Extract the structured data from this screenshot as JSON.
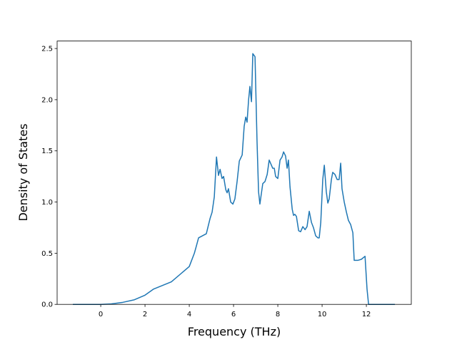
{
  "chart_data": {
    "type": "line",
    "xlabel": "Frequency (THz)",
    "ylabel": "Density of States",
    "x": [
      -1.26,
      0,
      0.48,
      1,
      1.52,
      2,
      2.39,
      3.19,
      4,
      4.23,
      4.32,
      4.42,
      4.77,
      4.94,
      5.03,
      5.13,
      5.23,
      5.32,
      5.39,
      5.48,
      5.55,
      5.65,
      5.71,
      5.77,
      5.87,
      5.97,
      6.06,
      6.16,
      6.26,
      6.39,
      6.48,
      6.55,
      6.61,
      6.68,
      6.74,
      6.81,
      6.87,
      6.97,
      7.06,
      7.13,
      7.19,
      7.32,
      7.42,
      7.52,
      7.61,
      7.71,
      7.77,
      7.84,
      7.9,
      8.0,
      8.1,
      8.19,
      8.26,
      8.35,
      8.42,
      8.48,
      8.55,
      8.65,
      8.71,
      8.77,
      8.84,
      8.94,
      9.03,
      9.13,
      9.23,
      9.32,
      9.42,
      9.52,
      9.61,
      9.71,
      9.81,
      9.87,
      9.94,
      10.03,
      10.1,
      10.19,
      10.26,
      10.32,
      10.42,
      10.48,
      10.58,
      10.68,
      10.77,
      10.84,
      10.9,
      11.0,
      11.1,
      11.19,
      11.29,
      11.39,
      11.45,
      11.61,
      11.77,
      11.94,
      12.03,
      12.1,
      13.29
    ],
    "values": [
      0,
      0,
      0.005,
      0.02,
      0.045,
      0.09,
      0.15,
      0.22,
      0.37,
      0.5,
      0.57,
      0.65,
      0.69,
      0.84,
      0.9,
      1.05,
      1.44,
      1.26,
      1.32,
      1.23,
      1.25,
      1.12,
      1.09,
      1.13,
      1.0,
      0.98,
      1.03,
      1.2,
      1.4,
      1.46,
      1.74,
      1.83,
      1.78,
      2.0,
      2.13,
      1.98,
      2.45,
      2.42,
      1.6,
      1.1,
      0.98,
      1.18,
      1.2,
      1.27,
      1.41,
      1.36,
      1.33,
      1.33,
      1.25,
      1.23,
      1.41,
      1.44,
      1.49,
      1.45,
      1.33,
      1.41,
      1.15,
      0.93,
      0.87,
      0.88,
      0.86,
      0.72,
      0.71,
      0.76,
      0.73,
      0.76,
      0.91,
      0.8,
      0.75,
      0.67,
      0.65,
      0.65,
      0.8,
      1.22,
      1.36,
      1.1,
      0.99,
      1.03,
      1.22,
      1.29,
      1.27,
      1.22,
      1.22,
      1.38,
      1.13,
      1.0,
      0.9,
      0.82,
      0.78,
      0.7,
      0.43,
      0.43,
      0.44,
      0.47,
      0.15,
      0,
      0
    ],
    "color": "#1f77b4",
    "xlim": [
      -1.97,
      14.03
    ],
    "xticks": [
      0,
      2,
      4,
      6,
      8,
      10,
      12
    ],
    "ylim": [
      0,
      2.573
    ],
    "yticks": [
      {
        "value": 0,
        "label": "0.0"
      },
      0.5,
      {
        "value": 1,
        "label": "1.0"
      },
      1.5,
      {
        "value": 2,
        "label": "2.0"
      },
      2.5
    ]
  }
}
